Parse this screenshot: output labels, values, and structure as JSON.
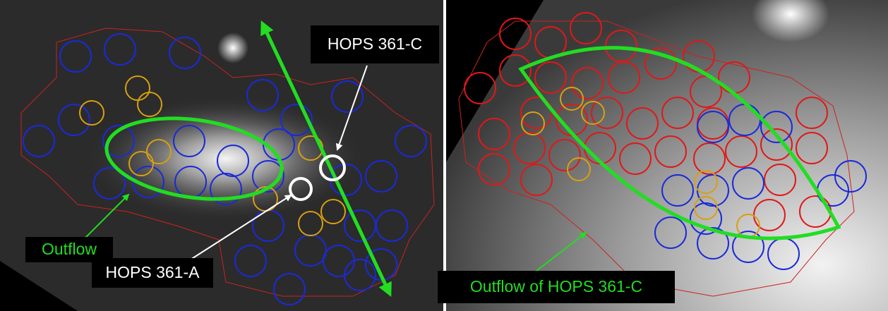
{
  "labels": {
    "hops_c": "HOPS 361-C",
    "outflow": "Outflow",
    "hops_a": "HOPS 361-A",
    "outflow_c": "Outflow of HOPS 361-C"
  }
}
